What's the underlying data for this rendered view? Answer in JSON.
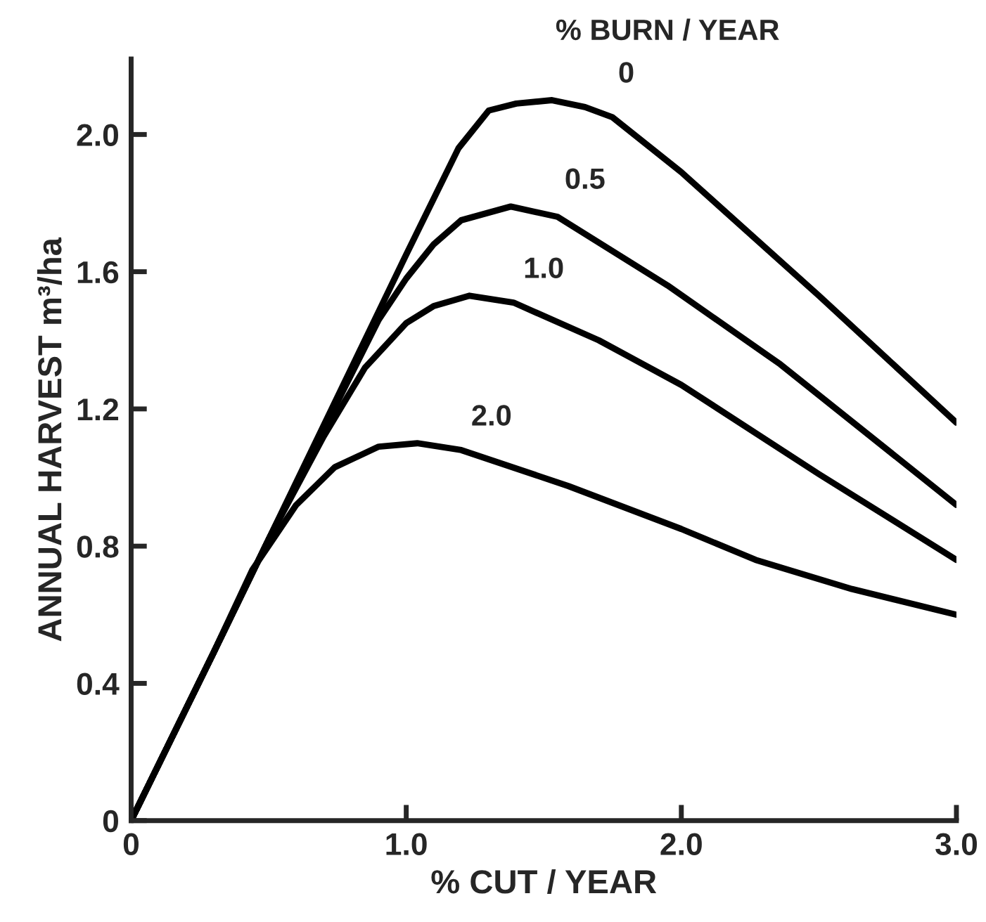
{
  "chart_data": {
    "type": "line",
    "xlabel": "% CUT / YEAR",
    "ylabel": "ANNUAL HARVEST m³/ha",
    "legend_title": "% BURN / YEAR",
    "xlim": [
      0,
      3.0
    ],
    "ylim": [
      0,
      2.22
    ],
    "xticks": [
      0,
      {
        "value": 1.0,
        "label": "1.0"
      },
      {
        "value": 2.0,
        "label": "2.0"
      },
      {
        "value": 3.0,
        "label": "3.0"
      }
    ],
    "yticks": [
      0,
      0.4,
      0.8,
      1.2,
      1.6,
      {
        "value": 2.0,
        "label": "2.0"
      }
    ],
    "grid": false,
    "legend": false,
    "marker": "none",
    "line_style": "solid",
    "series": [
      {
        "name": "0",
        "color": "#000000",
        "x": [
          0,
          0.3,
          0.5,
          1.0,
          1.19,
          1.3,
          1.4,
          1.53,
          1.65,
          1.75,
          2.0,
          2.5,
          3.0
        ],
        "values": [
          0,
          0.49,
          0.82,
          1.65,
          1.96,
          2.07,
          2.09,
          2.1,
          2.08,
          2.05,
          1.89,
          1.53,
          1.16
        ]
      },
      {
        "name": "0.5",
        "color": "#000000",
        "x": [
          0,
          0.3,
          0.5,
          0.8,
          0.9,
          1.0,
          1.1,
          1.2,
          1.38,
          1.55,
          1.95,
          2.36,
          3.0
        ],
        "values": [
          0,
          0.49,
          0.82,
          1.3,
          1.46,
          1.58,
          1.68,
          1.75,
          1.79,
          1.76,
          1.56,
          1.33,
          0.92
        ]
      },
      {
        "name": "1.0",
        "color": "#000000",
        "x": [
          0,
          0.3,
          0.5,
          0.7,
          0.85,
          1.0,
          1.1,
          1.23,
          1.39,
          1.7,
          2.0,
          2.5,
          3.0
        ],
        "values": [
          0,
          0.49,
          0.82,
          1.12,
          1.32,
          1.45,
          1.5,
          1.53,
          1.51,
          1.4,
          1.27,
          1.01,
          0.76
        ]
      },
      {
        "name": "2.0",
        "color": "#000000",
        "x": [
          0,
          0.3,
          0.44,
          0.6,
          0.74,
          0.9,
          1.04,
          1.2,
          1.59,
          2.0,
          2.27,
          2.62,
          3.0
        ],
        "values": [
          0,
          0.49,
          0.73,
          0.92,
          1.03,
          1.09,
          1.1,
          1.08,
          0.975,
          0.85,
          0.76,
          0.675,
          0.6
        ]
      }
    ]
  }
}
